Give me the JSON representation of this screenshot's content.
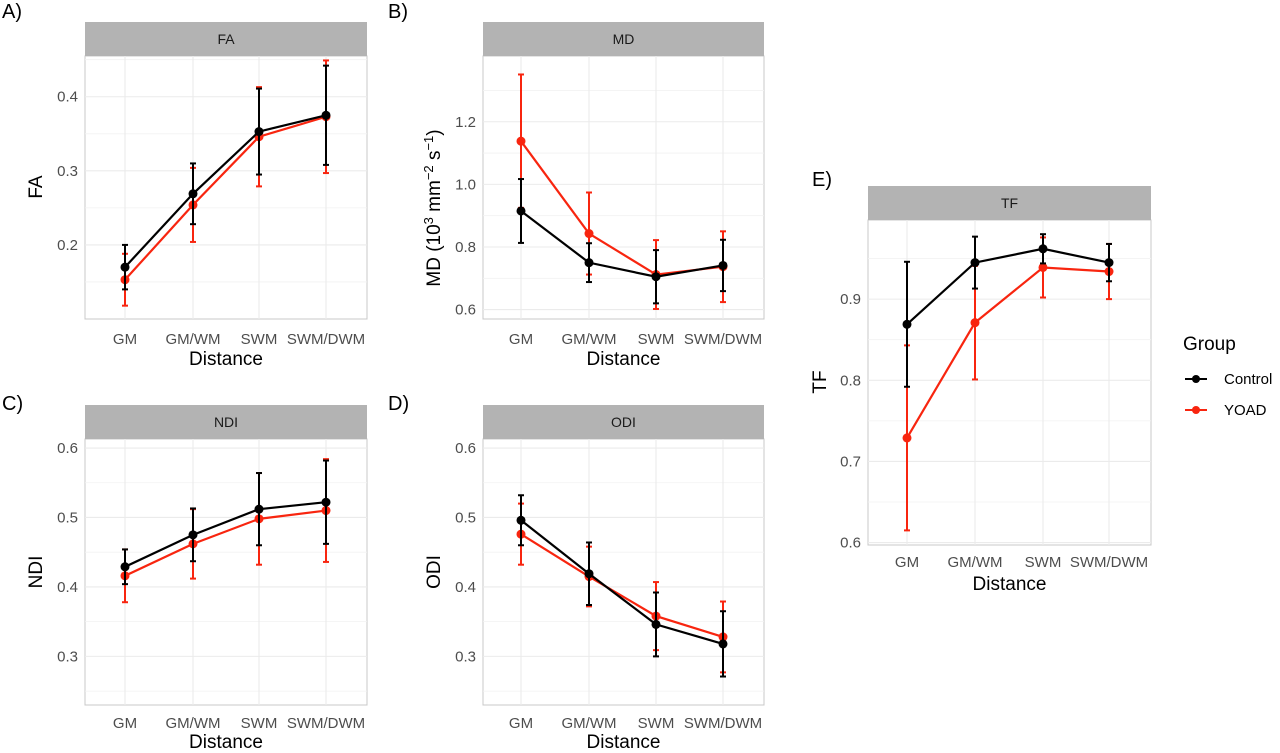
{
  "chart_data": [
    {
      "type": "line",
      "tag": "A)",
      "strip": "FA",
      "categories": [
        "GM",
        "GM/WM",
        "SWM",
        "SWM/DWM"
      ],
      "xlabel": "Distance",
      "ylabel": "FA",
      "ylim": [
        0.1,
        0.455
      ],
      "yticks": [
        0.2,
        0.3,
        0.4
      ],
      "ytick_labels": [
        "0.2",
        "0.3",
        "0.4"
      ],
      "series": [
        {
          "name": "Control",
          "values": [
            0.17,
            0.269,
            0.353,
            0.375
          ],
          "err": [
            0.03,
            0.041,
            0.058,
            0.067
          ]
        },
        {
          "name": "YOAD",
          "values": [
            0.153,
            0.254,
            0.346,
            0.373
          ],
          "err": [
            0.035,
            0.05,
            0.067,
            0.076
          ]
        }
      ]
    },
    {
      "type": "line",
      "tag": "B)",
      "strip": "MD",
      "categories": [
        "GM",
        "GM/WM",
        "SWM",
        "SWM/DWM"
      ],
      "xlabel": "Distance",
      "ylabel": "MD (10",
      "ylim": [
        0.57,
        1.41
      ],
      "yticks": [
        0.6,
        0.8,
        1.0,
        1.2
      ],
      "ytick_labels": [
        "0.6",
        "0.8",
        "1.0",
        "1.2"
      ],
      "series": [
        {
          "name": "Control",
          "values": [
            0.915,
            0.75,
            0.705,
            0.741
          ],
          "err": [
            0.102,
            0.062,
            0.085,
            0.082
          ]
        },
        {
          "name": "YOAD",
          "values": [
            1.138,
            0.843,
            0.712,
            0.737
          ],
          "err": [
            0.213,
            0.131,
            0.11,
            0.113
          ]
        }
      ]
    },
    {
      "type": "line",
      "tag": "C)",
      "strip": "NDI",
      "categories": [
        "GM",
        "GM/WM",
        "SWM",
        "SWM/DWM"
      ],
      "xlabel": "Distance",
      "ylabel": "NDI",
      "ylim": [
        0.23,
        0.613
      ],
      "yticks": [
        0.3,
        0.4,
        0.5,
        0.6
      ],
      "ytick_labels": [
        "0.3",
        "0.4",
        "0.5",
        "0.6"
      ],
      "series": [
        {
          "name": "Control",
          "values": [
            0.429,
            0.475,
            0.512,
            0.522
          ],
          "err": [
            0.025,
            0.038,
            0.052,
            0.06
          ]
        },
        {
          "name": "YOAD",
          "values": [
            0.416,
            0.462,
            0.498,
            0.51
          ],
          "err": [
            0.038,
            0.05,
            0.066,
            0.074
          ]
        }
      ]
    },
    {
      "type": "line",
      "tag": "D)",
      "strip": "ODI",
      "categories": [
        "GM",
        "GM/WM",
        "SWM",
        "SWM/DWM"
      ],
      "xlabel": "Distance",
      "ylabel": "ODI",
      "ylim": [
        0.23,
        0.613
      ],
      "yticks": [
        0.3,
        0.4,
        0.5,
        0.6
      ],
      "ytick_labels": [
        "0.3",
        "0.4",
        "0.5",
        "0.6"
      ],
      "series": [
        {
          "name": "Control",
          "values": [
            0.496,
            0.419,
            0.346,
            0.318
          ],
          "err": [
            0.036,
            0.045,
            0.046,
            0.047
          ]
        },
        {
          "name": "YOAD",
          "values": [
            0.476,
            0.415,
            0.358,
            0.328
          ],
          "err": [
            0.044,
            0.043,
            0.049,
            0.051
          ]
        }
      ]
    },
    {
      "type": "line",
      "tag": "E)",
      "strip": "TF",
      "categories": [
        "GM",
        "GM/WM",
        "SWM",
        "SWM/DWM"
      ],
      "xlabel": "Distance",
      "ylabel": "TF",
      "ylim": [
        0.597,
        0.9975
      ],
      "yticks": [
        0.6,
        0.7,
        0.8,
        0.9
      ],
      "ytick_labels": [
        "0.6",
        "0.7",
        "0.8",
        "0.9"
      ],
      "series": [
        {
          "name": "Control",
          "values": [
            0.869,
            0.945,
            0.962,
            0.945
          ],
          "err": [
            0.077,
            0.032,
            0.018,
            0.023
          ]
        },
        {
          "name": "YOAD",
          "values": [
            0.729,
            0.871,
            0.939,
            0.934
          ],
          "err": [
            0.114,
            0.07,
            0.037,
            0.034
          ]
        }
      ]
    }
  ],
  "legend": {
    "title": "Group",
    "items": [
      {
        "label": "Control",
        "color": "#000000"
      },
      {
        "label": "YOAD",
        "color": "#f8250f"
      }
    ]
  },
  "colors": {
    "Control": "#000000",
    "YOAD": "#f8250f",
    "strip": "#b3b3b3",
    "grid": "#ebebeb",
    "panel_border": "#c8c8c8"
  }
}
